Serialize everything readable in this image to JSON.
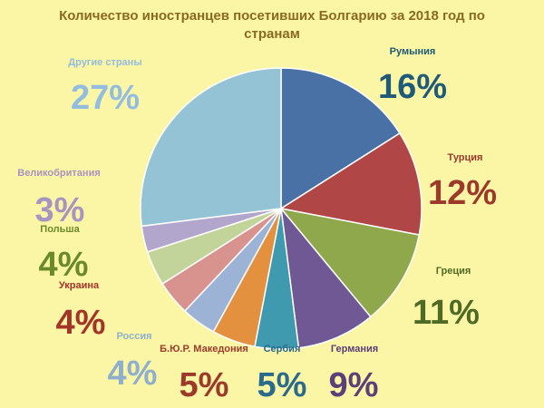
{
  "chart_data": {
    "type": "pie",
    "title": "Количество иностранцев посетивших Болгарию за 2018 год по странам",
    "unit": "%",
    "slices": [
      {
        "label": "Румыния",
        "value": 16,
        "value_label": "16%",
        "color": "#4a71a6",
        "label_color": "#1f5a78"
      },
      {
        "label": "Турция",
        "value": 12,
        "value_label": "12%",
        "color": "#b04746",
        "label_color": "#9b3a2a"
      },
      {
        "label": "Греция",
        "value": 11,
        "value_label": "11%",
        "color": "#8ea84b",
        "label_color": "#4e6a25"
      },
      {
        "label": "Германия",
        "value": 9,
        "value_label": "9%",
        "color": "#6f5894",
        "label_color": "#5a3f78"
      },
      {
        "label": "Сербия",
        "value": 5,
        "value_label": "5%",
        "color": "#3f9ab0",
        "label_color": "#2a6a8a"
      },
      {
        "label": "Б.Ю.Р. Македония",
        "value": 5,
        "value_label": "5%",
        "color": "#e3913f",
        "label_color": "#9b3a2a"
      },
      {
        "label": "Россия",
        "value": 4,
        "value_label": "4%",
        "color": "#9db3d6",
        "label_color": "#8fb0cc"
      },
      {
        "label": "Украина",
        "value": 4,
        "value_label": "4%",
        "color": "#d9938f",
        "label_color": "#a3342a"
      },
      {
        "label": "Польша",
        "value": 4,
        "value_label": "4%",
        "color": "#c3d49a",
        "label_color": "#6a8a2a"
      },
      {
        "label": "Великобритания",
        "value": 3,
        "value_label": "3%",
        "color": "#b3a6cc",
        "label_color": "#a894c0"
      },
      {
        "label": "Другие страны",
        "value": 27,
        "value_label": "27%",
        "color": "#94c3d5",
        "label_color": "#92bde0"
      }
    ]
  }
}
